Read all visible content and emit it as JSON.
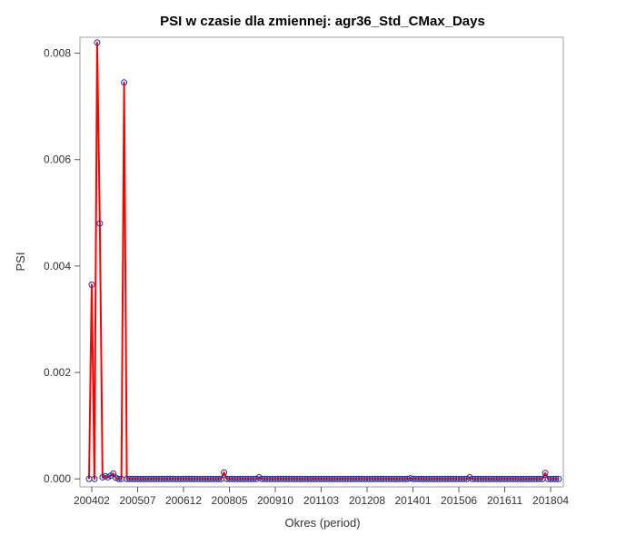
{
  "chart_data": {
    "type": "line",
    "title": "PSI w czasie dla zmiennej: agr36_Std_CMax_Days",
    "xlabel": "Okres (period)",
    "ylabel": "PSI",
    "ylim": [
      -0.00015,
      0.0083
    ],
    "yticks": [
      "0.000",
      "0.002",
      "0.004",
      "0.006",
      "0.008"
    ],
    "ytick_values": [
      0,
      0.002,
      0.004,
      0.006,
      0.008
    ],
    "xticks": [
      "200402",
      "200507",
      "200612",
      "200805",
      "200910",
      "201103",
      "201208",
      "201401",
      "201506",
      "201611",
      "201804"
    ],
    "x_start": "200401",
    "x_end": "201806",
    "grid": false,
    "line_color": "#ff0000",
    "marker_edge_color": "#2a2a9a",
    "series": [
      {
        "values": [
          0,
          0.00365,
          0,
          0.0082,
          0.0048,
          3e-05,
          5e-05,
          3e-05,
          6e-05,
          0.0001,
          2e-05,
          0,
          0,
          0.00745,
          0,
          0,
          0,
          0,
          0,
          0,
          0,
          0,
          0,
          0,
          0,
          0,
          0,
          0,
          0,
          0,
          0,
          0,
          0,
          0,
          0,
          0,
          0,
          0,
          0,
          0,
          0,
          0,
          0,
          0,
          0,
          0,
          0,
          0,
          0,
          0,
          0.00012,
          0,
          0,
          0,
          0,
          0,
          0,
          0,
          0,
          0,
          0,
          0,
          0,
          3e-05,
          0,
          0,
          0,
          0,
          0,
          0,
          0,
          0,
          0,
          0,
          0,
          0,
          0,
          0,
          0,
          0,
          0,
          0,
          0,
          0,
          0,
          0,
          0,
          0,
          0,
          0,
          0,
          0,
          0,
          0,
          0,
          0,
          0,
          0,
          0,
          0,
          0,
          0,
          0,
          0,
          0,
          0,
          0,
          0,
          0,
          0,
          0,
          0,
          0,
          0,
          0,
          0,
          0,
          0,
          0,
          1e-05,
          0,
          0,
          0,
          0,
          0,
          0,
          0,
          0,
          0,
          0,
          0,
          0,
          0,
          0,
          0,
          0,
          0,
          0,
          0,
          0,
          0,
          3e-05,
          0,
          0,
          0,
          0,
          0,
          0,
          0,
          0,
          0,
          0,
          0,
          0,
          0,
          0,
          0,
          0,
          0,
          0,
          0,
          0,
          0,
          0,
          0,
          0,
          0,
          0,
          0,
          0.00011,
          0,
          0,
          0,
          0,
          0
        ]
      }
    ]
  }
}
